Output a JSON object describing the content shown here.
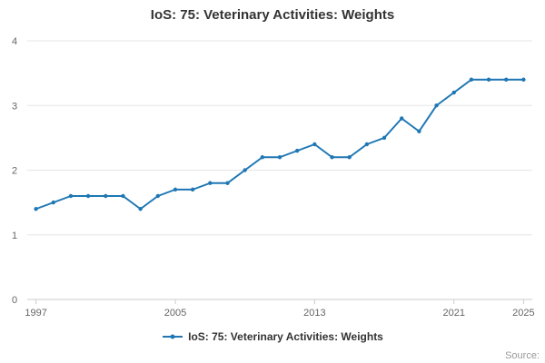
{
  "title": "IoS: 75: Veterinary Activities: Weights",
  "legend": {
    "label": "IoS: 75: Veterinary Activities: Weights"
  },
  "source": "Source:",
  "colors": {
    "line": "#1f77b4",
    "grid": "#e6e6e6",
    "axis": "#cccccc",
    "tick_text": "#666666",
    "title_text": "#333333"
  },
  "chart_data": {
    "type": "line",
    "title": "IoS: 75: Veterinary Activities: Weights",
    "series_name": "IoS: 75: Veterinary Activities: Weights",
    "x": [
      1997,
      1998,
      1999,
      2000,
      2001,
      2002,
      2003,
      2004,
      2005,
      2006,
      2007,
      2008,
      2009,
      2010,
      2011,
      2012,
      2013,
      2014,
      2015,
      2016,
      2017,
      2018,
      2019,
      2020,
      2021,
      2022,
      2023,
      2024,
      2025
    ],
    "values": [
      1.4,
      1.5,
      1.6,
      1.6,
      1.6,
      1.6,
      1.4,
      1.6,
      1.7,
      1.7,
      1.8,
      1.8,
      2.0,
      2.2,
      2.2,
      2.3,
      2.4,
      2.2,
      2.2,
      2.4,
      2.5,
      2.8,
      2.6,
      3.0,
      3.2,
      3.4,
      3.4,
      3.4,
      3.4
    ],
    "xticks": [
      1997,
      2005,
      2013,
      2021,
      2025
    ],
    "yticks": [
      0,
      1,
      2,
      3,
      4
    ],
    "xlim": [
      1996.5,
      2025.5
    ],
    "ylim": [
      0,
      4
    ],
    "grid": "horizontal",
    "legend_position": "bottom",
    "marker": "circle"
  }
}
